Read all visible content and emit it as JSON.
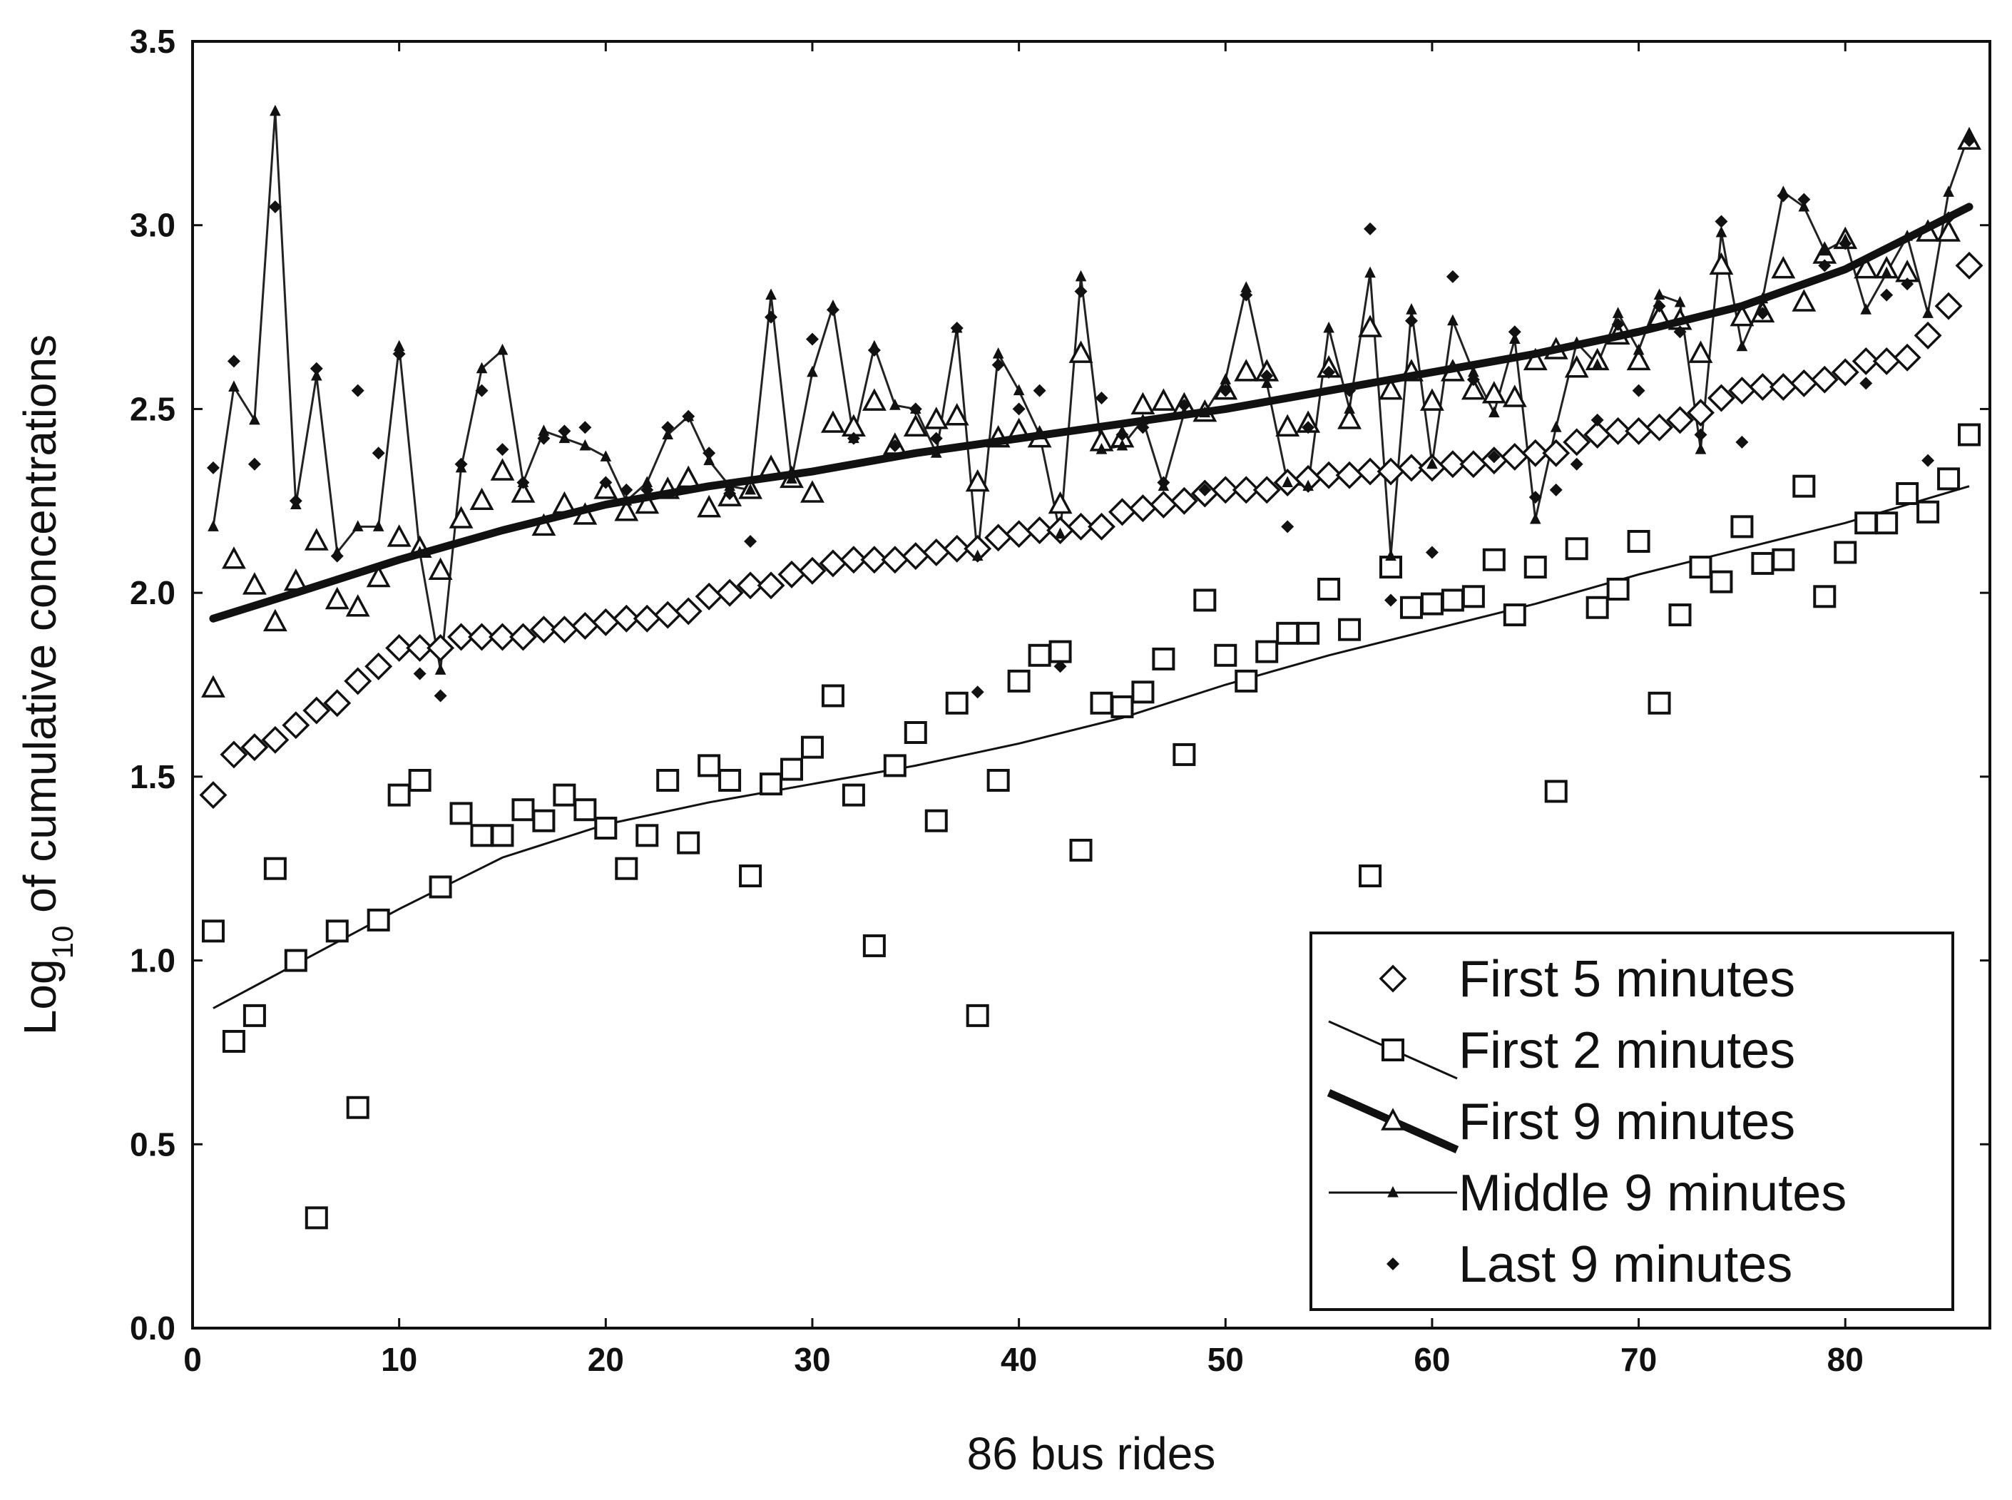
{
  "chart_data": {
    "type": "scatter",
    "title": "",
    "xlabel": "86 bus rides",
    "ylabel_main": "Log",
    "ylabel_sub": "10",
    "ylabel_rest": " of cumulative concentrations",
    "xlim": [
      0,
      87
    ],
    "ylim": [
      0,
      3.5
    ],
    "xticks": [
      0,
      10,
      20,
      30,
      40,
      50,
      60,
      70,
      80
    ],
    "xtick_labels": [
      "0",
      "10",
      "20",
      "30",
      "40",
      "50",
      "60",
      "70",
      "80"
    ],
    "yticks": [
      0,
      0.5,
      1,
      1.5,
      2,
      2.5,
      3,
      3.5
    ],
    "ytick_labels": [
      "0.0",
      "0.5",
      "1.0",
      "1.5",
      "2.0",
      "2.5",
      "3.0",
      "3.5"
    ],
    "grid": false,
    "legend_position": "bottom-right",
    "series": [
      {
        "name": "First 5 minutes",
        "marker": "diamond-open",
        "x": [
          1,
          2,
          3,
          4,
          5,
          6,
          7,
          8,
          9,
          10,
          11,
          12,
          13,
          14,
          15,
          16,
          17,
          18,
          19,
          20,
          21,
          22,
          23,
          24,
          25,
          26,
          27,
          28,
          29,
          30,
          31,
          32,
          33,
          34,
          35,
          36,
          37,
          38,
          39,
          40,
          41,
          42,
          43,
          44,
          45,
          46,
          47,
          48,
          49,
          50,
          51,
          52,
          53,
          54,
          55,
          56,
          57,
          58,
          59,
          60,
          61,
          62,
          63,
          64,
          65,
          66,
          67,
          68,
          69,
          70,
          71,
          72,
          73,
          74,
          75,
          76,
          77,
          78,
          79,
          80,
          81,
          82,
          83,
          84,
          85,
          86
        ],
        "y": [
          1.45,
          1.56,
          1.58,
          1.6,
          1.64,
          1.68,
          1.7,
          1.76,
          1.8,
          1.85,
          1.85,
          1.85,
          1.88,
          1.88,
          1.88,
          1.88,
          1.9,
          1.9,
          1.91,
          1.92,
          1.93,
          1.93,
          1.94,
          1.95,
          1.99,
          2.0,
          2.02,
          2.02,
          2.05,
          2.06,
          2.08,
          2.09,
          2.09,
          2.09,
          2.1,
          2.11,
          2.12,
          2.12,
          2.15,
          2.16,
          2.17,
          2.17,
          2.18,
          2.18,
          2.22,
          2.23,
          2.24,
          2.25,
          2.27,
          2.28,
          2.28,
          2.28,
          2.3,
          2.31,
          2.32,
          2.32,
          2.33,
          2.33,
          2.34,
          2.34,
          2.35,
          2.35,
          2.36,
          2.37,
          2.38,
          2.38,
          2.41,
          2.43,
          2.44,
          2.44,
          2.45,
          2.47,
          2.49,
          2.53,
          2.55,
          2.56,
          2.56,
          2.57,
          2.58,
          2.6,
          2.63,
          2.63,
          2.64,
          2.7,
          2.78,
          2.89
        ]
      },
      {
        "name": "First 2 minutes",
        "marker": "square-open",
        "x": [
          1,
          2,
          3,
          4,
          5,
          6,
          7,
          8,
          9,
          10,
          11,
          12,
          13,
          14,
          15,
          16,
          17,
          18,
          19,
          20,
          21,
          22,
          23,
          24,
          25,
          26,
          27,
          28,
          29,
          30,
          31,
          32,
          33,
          34,
          35,
          36,
          37,
          38,
          39,
          40,
          41,
          42,
          43,
          44,
          45,
          46,
          47,
          48,
          49,
          50,
          51,
          52,
          53,
          54,
          55,
          56,
          57,
          58,
          59,
          60,
          61,
          62,
          63,
          64,
          65,
          66,
          67,
          68,
          69,
          70,
          71,
          72,
          73,
          74,
          75,
          76,
          77,
          78,
          79,
          80,
          81,
          82,
          83,
          84,
          85,
          86
        ],
        "y": [
          1.08,
          0.78,
          0.85,
          1.25,
          1.0,
          0.3,
          1.08,
          0.6,
          1.11,
          1.45,
          1.49,
          1.2,
          1.4,
          1.34,
          1.34,
          1.41,
          1.38,
          1.45,
          1.41,
          1.36,
          1.25,
          1.34,
          1.49,
          1.32,
          1.53,
          1.49,
          1.23,
          1.48,
          1.52,
          1.58,
          1.72,
          1.45,
          1.04,
          1.53,
          1.62,
          1.38,
          1.7,
          0.85,
          1.49,
          1.76,
          1.83,
          1.84,
          1.3,
          1.7,
          1.69,
          1.73,
          1.82,
          1.56,
          1.98,
          1.83,
          1.76,
          1.84,
          1.89,
          1.89,
          2.01,
          1.9,
          1.23,
          2.07,
          1.96,
          1.97,
          1.98,
          1.99,
          2.09,
          1.94,
          2.07,
          1.46,
          2.12,
          1.96,
          2.01,
          2.14,
          1.7,
          1.94,
          2.07,
          2.03,
          2.18,
          2.08,
          2.09,
          2.29,
          1.99,
          2.11,
          2.19,
          2.19,
          2.27,
          2.22,
          2.31,
          2.43
        ],
        "trend_x": [
          1,
          5,
          10,
          15,
          20,
          25,
          30,
          35,
          40,
          45,
          50,
          55,
          60,
          65,
          70,
          75,
          80,
          86
        ],
        "trend_y": [
          0.87,
          0.99,
          1.14,
          1.28,
          1.37,
          1.43,
          1.48,
          1.53,
          1.59,
          1.66,
          1.75,
          1.83,
          1.9,
          1.97,
          2.05,
          2.12,
          2.19,
          2.29
        ]
      },
      {
        "name": "First 9 minutes",
        "marker": "triangle-open",
        "x": [
          1,
          2,
          3,
          4,
          5,
          6,
          7,
          8,
          9,
          10,
          11,
          12,
          13,
          14,
          15,
          16,
          17,
          18,
          19,
          20,
          21,
          22,
          23,
          24,
          25,
          26,
          27,
          28,
          29,
          30,
          31,
          32,
          33,
          34,
          35,
          36,
          37,
          38,
          39,
          40,
          41,
          42,
          43,
          44,
          45,
          46,
          47,
          48,
          49,
          50,
          51,
          52,
          53,
          54,
          55,
          56,
          57,
          58,
          59,
          60,
          61,
          62,
          63,
          64,
          65,
          66,
          67,
          68,
          69,
          70,
          71,
          72,
          73,
          74,
          75,
          76,
          77,
          78,
          79,
          80,
          81,
          82,
          83,
          84,
          85,
          86
        ],
        "y": [
          1.74,
          2.09,
          2.02,
          1.92,
          2.03,
          2.14,
          1.98,
          1.96,
          2.04,
          2.15,
          2.12,
          2.06,
          2.2,
          2.25,
          2.33,
          2.27,
          2.18,
          2.24,
          2.21,
          2.28,
          2.22,
          2.24,
          2.28,
          2.31,
          2.23,
          2.26,
          2.28,
          2.34,
          2.31,
          2.27,
          2.46,
          2.45,
          2.52,
          2.4,
          2.45,
          2.47,
          2.48,
          2.3,
          2.42,
          2.44,
          2.42,
          2.24,
          2.65,
          2.41,
          2.42,
          2.51,
          2.52,
          2.51,
          2.49,
          2.55,
          2.6,
          2.6,
          2.45,
          2.46,
          2.61,
          2.47,
          2.72,
          2.55,
          2.6,
          2.52,
          2.6,
          2.55,
          2.54,
          2.53,
          2.63,
          2.66,
          2.61,
          2.63,
          2.7,
          2.63,
          2.75,
          2.74,
          2.65,
          2.89,
          2.75,
          2.76,
          2.88,
          2.79,
          2.92,
          2.96,
          2.88,
          2.88,
          2.87,
          2.98,
          2.98,
          3.23
        ],
        "trend_x": [
          1,
          5,
          10,
          15,
          20,
          25,
          30,
          35,
          40,
          45,
          50,
          55,
          60,
          65,
          70,
          75,
          80,
          86
        ],
        "trend_y": [
          1.93,
          2.0,
          2.09,
          2.17,
          2.24,
          2.29,
          2.33,
          2.38,
          2.42,
          2.46,
          2.5,
          2.55,
          2.6,
          2.65,
          2.71,
          2.78,
          2.88,
          3.05
        ]
      },
      {
        "name": "Middle 9 minutes",
        "marker": "small-triangle-line",
        "x": [
          1,
          2,
          3,
          4,
          5,
          6,
          7,
          8,
          9,
          10,
          11,
          12,
          13,
          14,
          15,
          16,
          17,
          18,
          19,
          20,
          21,
          22,
          23,
          24,
          25,
          26,
          27,
          28,
          29,
          30,
          31,
          32,
          33,
          34,
          35,
          36,
          37,
          38,
          39,
          40,
          41,
          42,
          43,
          44,
          45,
          46,
          47,
          48,
          49,
          50,
          51,
          52,
          53,
          54,
          55,
          56,
          57,
          58,
          59,
          60,
          61,
          62,
          63,
          64,
          65,
          66,
          67,
          68,
          69,
          70,
          71,
          72,
          73,
          74,
          75,
          76,
          77,
          78,
          79,
          80,
          81,
          82,
          83,
          84,
          85,
          86
        ],
        "y": [
          2.18,
          2.56,
          2.47,
          3.31,
          2.24,
          2.59,
          2.11,
          2.18,
          2.18,
          2.67,
          2.11,
          1.79,
          2.34,
          2.61,
          2.66,
          2.3,
          2.44,
          2.42,
          2.4,
          2.37,
          2.25,
          2.3,
          2.43,
          2.48,
          2.36,
          2.29,
          2.28,
          2.81,
          2.31,
          2.6,
          2.78,
          2.42,
          2.67,
          2.51,
          2.5,
          2.38,
          2.72,
          2.1,
          2.65,
          2.55,
          2.43,
          2.16,
          2.86,
          2.39,
          2.4,
          2.47,
          2.29,
          2.49,
          2.49,
          2.58,
          2.83,
          2.57,
          2.3,
          2.29,
          2.72,
          2.5,
          2.87,
          2.1,
          2.77,
          2.35,
          2.74,
          2.6,
          2.49,
          2.69,
          2.2,
          2.45,
          2.68,
          2.62,
          2.76,
          2.66,
          2.81,
          2.79,
          2.39,
          2.98,
          2.67,
          2.8,
          3.09,
          3.05,
          2.93,
          2.96,
          2.77,
          2.87,
          2.97,
          2.76,
          3.09,
          3.25
        ]
      },
      {
        "name": "Last 9 minutes",
        "marker": "dot",
        "x": [
          1,
          2,
          3,
          4,
          5,
          6,
          7,
          8,
          9,
          10,
          11,
          12,
          13,
          14,
          15,
          16,
          17,
          18,
          19,
          20,
          21,
          22,
          23,
          24,
          25,
          26,
          27,
          28,
          29,
          30,
          31,
          32,
          33,
          34,
          35,
          36,
          37,
          38,
          39,
          40,
          41,
          42,
          43,
          44,
          45,
          46,
          47,
          48,
          49,
          50,
          51,
          52,
          53,
          54,
          55,
          56,
          57,
          58,
          59,
          60,
          61,
          62,
          63,
          64,
          65,
          66,
          67,
          68,
          69,
          70,
          71,
          72,
          73,
          74,
          75,
          76,
          77,
          78,
          79,
          80,
          81,
          82,
          83,
          84,
          85,
          86
        ],
        "y": [
          2.34,
          2.63,
          2.35,
          3.05,
          2.25,
          2.61,
          2.1,
          2.55,
          2.38,
          2.65,
          1.78,
          1.72,
          2.35,
          2.55,
          2.39,
          2.3,
          2.42,
          2.44,
          2.45,
          2.3,
          2.28,
          2.28,
          2.45,
          2.48,
          2.38,
          2.27,
          2.14,
          2.75,
          2.32,
          2.69,
          2.77,
          2.42,
          2.66,
          2.4,
          2.5,
          2.42,
          2.72,
          1.73,
          2.62,
          2.5,
          2.55,
          1.8,
          2.82,
          2.53,
          2.43,
          2.45,
          2.3,
          2.51,
          2.28,
          2.55,
          2.81,
          2.59,
          2.18,
          2.45,
          2.6,
          2.55,
          2.99,
          1.98,
          2.74,
          2.11,
          2.86,
          2.58,
          2.37,
          2.71,
          2.26,
          2.28,
          2.35,
          2.47,
          2.73,
          2.55,
          2.78,
          2.71,
          2.43,
          3.01,
          2.41,
          2.76,
          3.08,
          3.07,
          2.89,
          2.95,
          2.57,
          2.81,
          2.84,
          2.36,
          3.02,
          3.23
        ]
      }
    ]
  }
}
